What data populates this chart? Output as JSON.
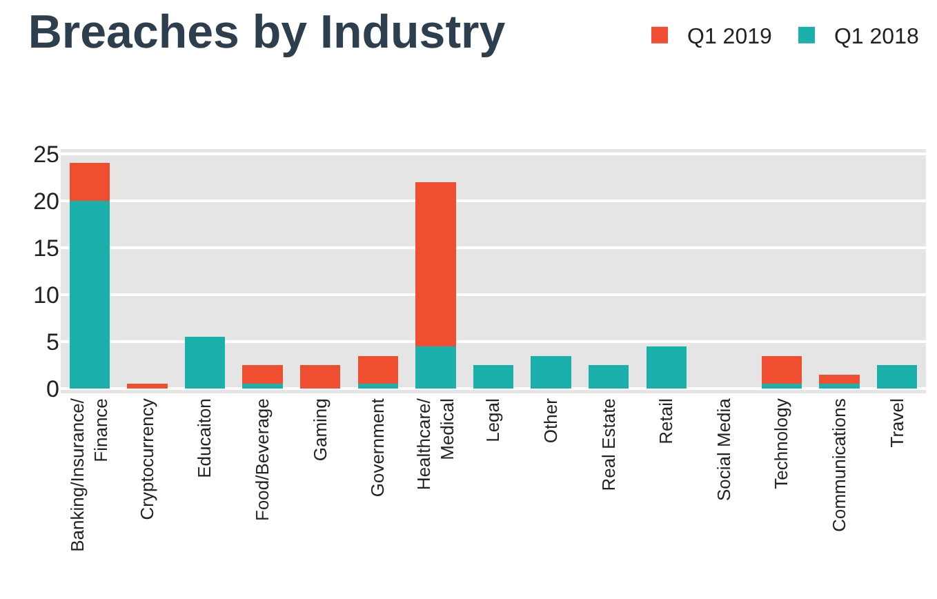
{
  "chart_data": {
    "type": "bar",
    "title": "Breaches by Industry",
    "stacked": true,
    "categories": [
      "Banking/Insurance/\nFinance",
      "Cryptocurrency",
      "Educaiton",
      "Food/Beverage",
      "Gaming",
      "Government",
      "Healthcare/\nMedical",
      "Legal",
      "Other",
      "Real Estate",
      "Retail",
      "Social Media",
      "Technology",
      "Communications",
      "Travel"
    ],
    "series": [
      {
        "name": "Q1 2018",
        "color": "#1cb0ac",
        "values": [
          20,
          0,
          5.5,
          0.5,
          0,
          0.5,
          4.5,
          2.5,
          3.5,
          2.5,
          4.5,
          0,
          0.5,
          0.5,
          2.5
        ]
      },
      {
        "name": "Q1 2019",
        "color": "#ef4e30",
        "values": [
          4,
          0.5,
          0,
          2,
          2.5,
          3,
          17.5,
          0,
          0,
          0,
          0,
          0,
          3,
          1,
          0
        ]
      }
    ],
    "ylim": [
      -0.5,
      25.5
    ],
    "yticks": [
      0,
      5,
      10,
      15,
      20,
      25
    ],
    "grid": "y",
    "legend": "top right"
  }
}
